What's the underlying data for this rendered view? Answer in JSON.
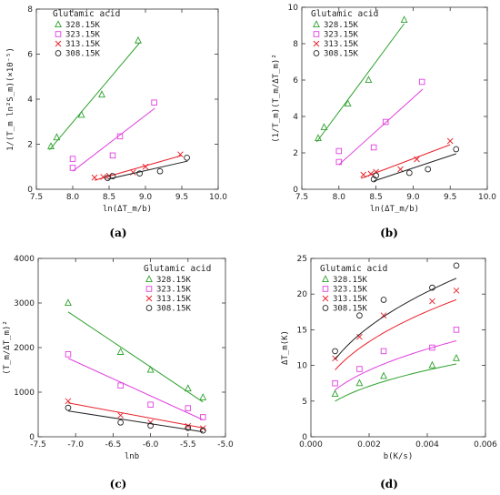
{
  "colors": {
    "s1": "#2ca02c",
    "s2": "#e040e0",
    "s3": "#e8202a",
    "s4": "#222222"
  },
  "legend_names": [
    "328.15K",
    "323.15K",
    "313.15K",
    "308.15K"
  ],
  "chart_data": [
    {
      "type": "scatter",
      "panel_label": "(a)",
      "legend_title": "Glutamic acid",
      "xlabel": "ln(ΔT_m/b)",
      "ylabel": "1/(T_m ln²S_m)(×10⁻⁵)",
      "xlim": [
        7.5,
        10.0
      ],
      "ylim": [
        0,
        8
      ],
      "xticks": [
        7.5,
        8.0,
        8.5,
        9.0,
        9.5,
        10.0
      ],
      "yticks": [
        0,
        2,
        4,
        6,
        8
      ],
      "xtick_labels": [
        "7.5",
        "8.0",
        "8.5",
        "9.0",
        "9.5",
        "10.0"
      ],
      "ytick_labels": [
        "0",
        "2",
        "4",
        "6",
        "8"
      ],
      "series": [
        {
          "name": "328.15K",
          "marker": "triangle",
          "x": [
            7.7,
            7.78,
            8.12,
            8.4,
            8.9
          ],
          "y": [
            1.9,
            2.3,
            3.3,
            4.2,
            6.6
          ],
          "fit": [
            [
              7.68,
              1.75
            ],
            [
              8.92,
              6.5
            ]
          ]
        },
        {
          "name": "323.15K",
          "marker": "square",
          "x": [
            8.0,
            8.0,
            8.55,
            8.65,
            9.12
          ],
          "y": [
            0.95,
            1.35,
            1.5,
            2.35,
            3.85
          ],
          "fit": [
            [
              8.0,
              0.8
            ],
            [
              9.13,
              3.6
            ]
          ]
        },
        {
          "name": "313.15K",
          "marker": "x",
          "x": [
            8.3,
            8.42,
            8.5,
            8.83,
            9.0,
            9.48
          ],
          "y": [
            0.52,
            0.55,
            0.6,
            0.75,
            1.0,
            1.55
          ],
          "fit": [
            [
              8.3,
              0.4
            ],
            [
              9.5,
              1.5
            ]
          ]
        },
        {
          "name": "308.15K",
          "marker": "circle",
          "x": [
            8.48,
            8.55,
            8.92,
            9.2,
            9.57
          ],
          "y": [
            0.5,
            0.58,
            0.7,
            0.8,
            1.4
          ],
          "fit": [
            [
              8.48,
              0.45
            ],
            [
              9.58,
              1.25
            ]
          ]
        }
      ]
    },
    {
      "type": "scatter",
      "panel_label": "(b)",
      "legend_title": "Glutamic acid",
      "xlabel": "ln(ΔT_m/b)",
      "ylabel": "(1/T_m)(T_m/ΔT_m)²",
      "xlim": [
        7.5,
        10.0
      ],
      "ylim": [
        0,
        10
      ],
      "xticks": [
        7.5,
        8.0,
        8.5,
        9.0,
        9.5,
        10.0
      ],
      "yticks": [
        0,
        2,
        4,
        6,
        8,
        10
      ],
      "xtick_labels": [
        "7.5",
        "8.0",
        "8.5",
        "9.0",
        "9.5",
        "10.0"
      ],
      "ytick_labels": [
        "0",
        "2",
        "4",
        "6",
        "8",
        "10"
      ],
      "series": [
        {
          "name": "328.15K",
          "marker": "triangle",
          "x": [
            7.72,
            7.8,
            8.12,
            8.4,
            8.88
          ],
          "y": [
            2.8,
            3.4,
            4.7,
            6.0,
            9.3
          ],
          "fit": [
            [
              7.7,
              2.6
            ],
            [
              8.88,
              9.1
            ]
          ]
        },
        {
          "name": "323.15K",
          "marker": "square",
          "x": [
            8.0,
            8.0,
            8.47,
            8.63,
            9.12
          ],
          "y": [
            1.5,
            2.1,
            2.3,
            3.7,
            5.9
          ],
          "fit": [
            [
              8.0,
              1.35
            ],
            [
              9.13,
              5.5
            ]
          ]
        },
        {
          "name": "313.15K",
          "marker": "x",
          "x": [
            8.33,
            8.43,
            8.5,
            8.83,
            9.05,
            9.5
          ],
          "y": [
            0.8,
            0.85,
            0.95,
            1.1,
            1.65,
            2.65
          ],
          "fit": [
            [
              8.3,
              0.6
            ],
            [
              9.5,
              2.45
            ]
          ]
        },
        {
          "name": "308.15K",
          "marker": "circle",
          "x": [
            8.47,
            8.5,
            8.95,
            9.2,
            9.58
          ],
          "y": [
            0.55,
            0.75,
            0.9,
            1.1,
            2.2
          ],
          "fit": [
            [
              8.47,
              0.45
            ],
            [
              9.58,
              1.95
            ]
          ]
        }
      ]
    },
    {
      "type": "scatter",
      "panel_label": "(c)",
      "legend_title": "Glutamic acid",
      "xlabel": "lnb",
      "ylabel": "(T_m/ΔT_m)²",
      "xlim": [
        -7.5,
        -5.0
      ],
      "ylim": [
        0,
        4000
      ],
      "xticks": [
        -7.5,
        -7.0,
        -6.5,
        -6.0,
        -5.5,
        -5.0
      ],
      "yticks": [
        0,
        1000,
        2000,
        3000,
        4000
      ],
      "xtick_labels": [
        "-7.5",
        "-7.0",
        "-6.5",
        "-6.0",
        "-5.5",
        "-5.0"
      ],
      "ytick_labels": [
        "0",
        "1000",
        "2000",
        "3000",
        "4000"
      ],
      "series": [
        {
          "name": "328.15K",
          "marker": "triangle",
          "x": [
            -7.1,
            -6.4,
            -6.0,
            -5.5,
            -5.3
          ],
          "y": [
            3000,
            1900,
            1500,
            1080,
            880
          ],
          "fit": [
            [
              -7.1,
              2800
            ],
            [
              -5.3,
              780
            ]
          ]
        },
        {
          "name": "323.15K",
          "marker": "square",
          "x": [
            -7.1,
            -6.4,
            -6.0,
            -5.5,
            -5.3
          ],
          "y": [
            1850,
            1150,
            720,
            640,
            440
          ],
          "fit": [
            [
              -7.1,
              1760
            ],
            [
              -5.3,
              380
            ]
          ]
        },
        {
          "name": "313.15K",
          "marker": "x",
          "x": [
            -7.1,
            -6.4,
            -6.0,
            -5.5,
            -5.3
          ],
          "y": [
            800,
            480,
            320,
            240,
            190
          ],
          "fit": [
            [
              -7.1,
              760
            ],
            [
              -5.3,
              200
            ]
          ]
        },
        {
          "name": "308.15K",
          "marker": "circle",
          "x": [
            -7.1,
            -6.4,
            -6.0,
            -5.5,
            -5.3
          ],
          "y": [
            650,
            320,
            250,
            200,
            140
          ],
          "fit": [
            [
              -7.1,
              580
            ],
            [
              -5.3,
              110
            ]
          ]
        }
      ]
    },
    {
      "type": "scatter",
      "panel_label": "(d)",
      "legend_title": "Glutamic acid",
      "xlabel": "b(K/s)",
      "ylabel": "ΔT_m(K)",
      "xlim": [
        0,
        0.006
      ],
      "ylim": [
        0,
        25
      ],
      "xticks": [
        0,
        0.002,
        0.004,
        0.006
      ],
      "yticks": [
        0,
        5,
        10,
        15,
        20,
        25
      ],
      "xtick_labels": [
        "0.000",
        "0.002",
        "0.004",
        "0.006"
      ],
      "ytick_labels": [
        "0",
        "5",
        "10",
        "15",
        "20",
        "25"
      ],
      "series": [
        {
          "name": "328.15K",
          "marker": "triangle",
          "x": [
            0.00083,
            0.00167,
            0.0025,
            0.00417,
            0.005
          ],
          "y": [
            6.0,
            7.5,
            8.5,
            10.0,
            11.0
          ],
          "fit_power": {
            "a": 85.0,
            "n": 0.4
          }
        },
        {
          "name": "323.15K",
          "marker": "square",
          "x": [
            0.00083,
            0.00167,
            0.0025,
            0.00417,
            0.005
          ],
          "y": [
            7.5,
            9.5,
            12.0,
            12.5,
            15.0
          ],
          "fit_power": {
            "a": 112.0,
            "n": 0.4
          }
        },
        {
          "name": "313.15K",
          "marker": "x",
          "x": [
            0.00083,
            0.00167,
            0.0025,
            0.00417,
            0.005
          ],
          "y": [
            11.0,
            14.0,
            17.0,
            19.0,
            20.5
          ],
          "fit_power": {
            "a": 160.0,
            "n": 0.4
          }
        },
        {
          "name": "308.15K",
          "marker": "circle",
          "x": [
            0.00083,
            0.00167,
            0.0025,
            0.00417,
            0.005
          ],
          "y": [
            12.0,
            17.0,
            19.2,
            20.9,
            24.0
          ],
          "fit_power": {
            "a": 185.0,
            "n": 0.4
          }
        }
      ]
    }
  ]
}
